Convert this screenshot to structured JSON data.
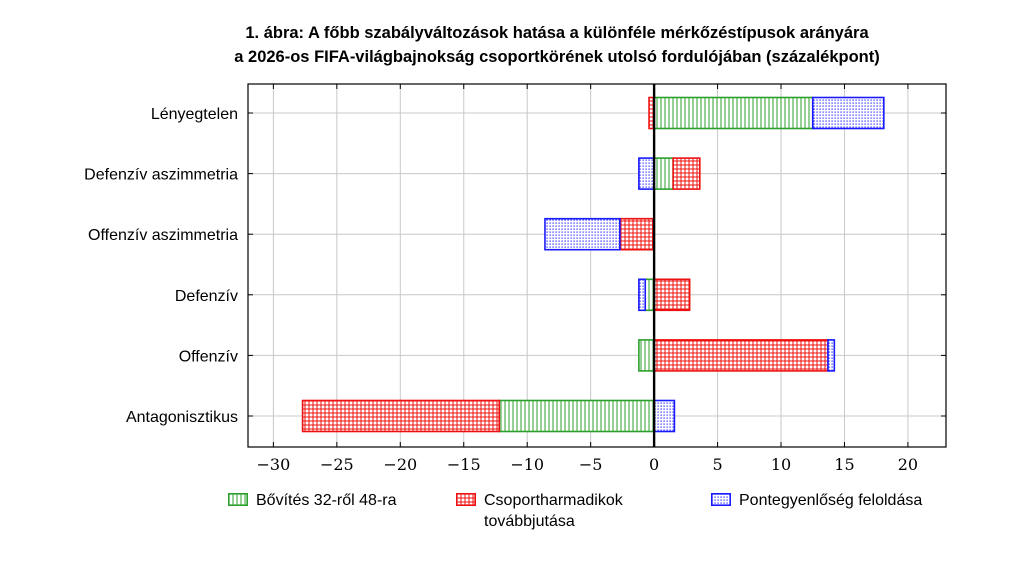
{
  "title_line1": "1. ábra: A főbb szabályváltozások hatása a különféle mérkőzéstípusok arányára",
  "title_line2": "a 2026-os FIFA-világbajnokság csoportkörének utolsó fordulójában (százalékpont)",
  "colors": {
    "green": "#2ca02c",
    "red": "#ee1111",
    "blue": "#1a1aff"
  },
  "legend": [
    {
      "lines": [
        "Bővítés 32-ről 48-ra"
      ],
      "pattern": "vertical-lines",
      "color": "#2ca02c"
    },
    {
      "lines": [
        "Csoportharmadikok",
        "továbbjutása"
      ],
      "pattern": "grid",
      "color": "#ee1111"
    },
    {
      "lines": [
        "Pontegyenlőség feloldása"
      ],
      "pattern": "dots",
      "color": "#1a1aff"
    }
  ],
  "chart_data": {
    "type": "bar",
    "orientation": "horizontal",
    "stacked": true,
    "categories": [
      "Lényegtelen",
      "Defenzív aszimmetria",
      "Offenzív aszimmetria",
      "Defenzív",
      "Offenzív",
      "Antagonisztikus"
    ],
    "series": [
      {
        "name": "Bővítés 32-ről 48-ra",
        "values": [
          12.5,
          1.5,
          -0.1,
          -0.7,
          -1.2,
          -12.2
        ]
      },
      {
        "name": "Csoportharmadikok továbbjutása",
        "values": [
          -0.4,
          2.1,
          -2.6,
          2.8,
          13.7,
          -15.5
        ]
      },
      {
        "name": "Pontegyenlőség feloldása",
        "values": [
          5.6,
          -1.2,
          -5.9,
          -0.5,
          0.5,
          1.6
        ]
      }
    ],
    "xlim": [
      -32,
      23
    ],
    "xticks": [
      -30,
      -25,
      -20,
      -15,
      -10,
      -5,
      0,
      5,
      10,
      15,
      20
    ],
    "xtick_labels": [
      "−30",
      "−25",
      "−20",
      "−15",
      "−10",
      "−5",
      "0",
      "5",
      "10",
      "15",
      "20"
    ],
    "grid": true,
    "legend_position": "bottom"
  }
}
